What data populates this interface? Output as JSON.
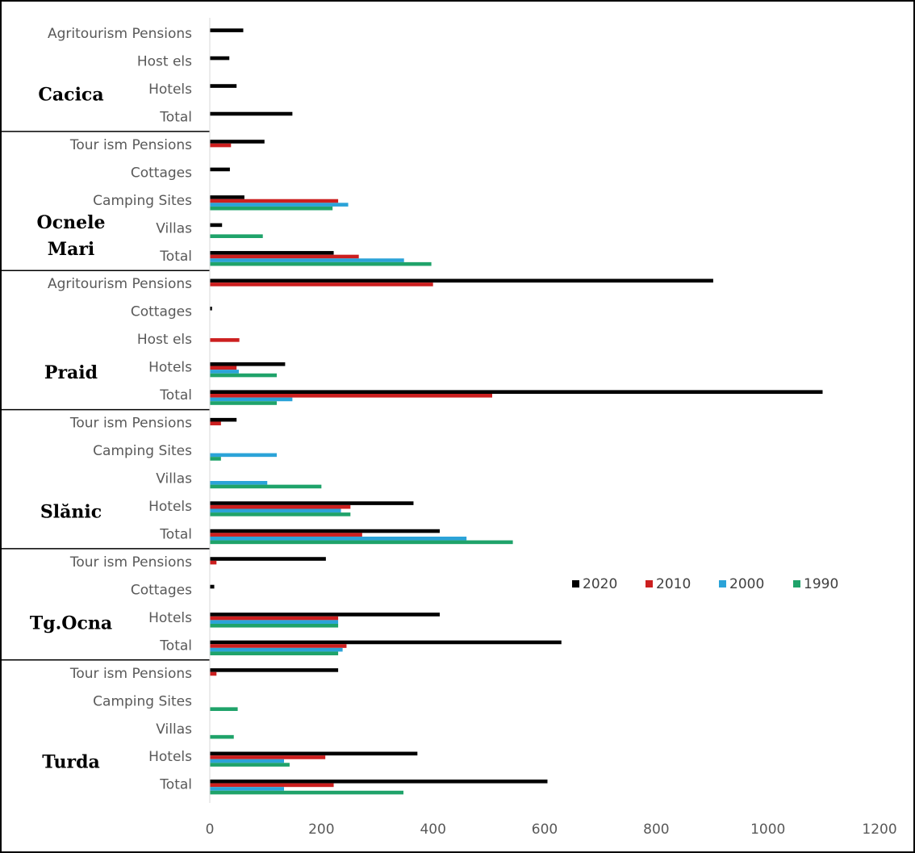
{
  "chart_data": {
    "type": "bar",
    "orientation": "horizontal",
    "xlim": [
      0,
      1200
    ],
    "x_ticks": [
      "0",
      "200",
      "400",
      "600",
      "800",
      "1000",
      "1200"
    ],
    "grid": false,
    "legend_position": "right",
    "series": [
      {
        "name": "2020",
        "color": "#000000"
      },
      {
        "name": "2010",
        "color": "#cc1f1f"
      },
      {
        "name": "2000",
        "color": "#2ba3d8"
      },
      {
        "name": "1990",
        "color": "#1fa36a"
      }
    ],
    "groups": [
      {
        "name": "Cacica",
        "label_lines": [
          "Cacica"
        ],
        "categories": [
          {
            "label": "Agritourism Pensions",
            "values": [
              60,
              0,
              0,
              0
            ]
          },
          {
            "label": "Host els",
            "values": [
              35,
              0,
              0,
              0
            ]
          },
          {
            "label": "Hotels",
            "values": [
              48,
              0,
              0,
              0
            ]
          },
          {
            "label": "Total",
            "values": [
              148,
              0,
              0,
              0
            ]
          }
        ]
      },
      {
        "name": "Ocnele Mari",
        "label_lines": [
          "Ocnele",
          "Mari"
        ],
        "categories": [
          {
            "label": "Tour ism Pensions",
            "values": [
              98,
              38,
              0,
              0
            ]
          },
          {
            "label": "Cottages",
            "values": [
              36,
              0,
              0,
              0
            ]
          },
          {
            "label": "Camping Sites",
            "values": [
              62,
              230,
              248,
              220
            ]
          },
          {
            "label": "Villas",
            "values": [
              22,
              0,
              0,
              95
            ]
          },
          {
            "label": "Total",
            "values": [
              222,
              267,
              348,
              397
            ]
          }
        ]
      },
      {
        "name": "Praid",
        "label_lines": [
          "Praid"
        ],
        "categories": [
          {
            "label": "Agritourism Pensions",
            "values": [
              902,
              400,
              0,
              0
            ]
          },
          {
            "label": "Cottages",
            "values": [
              4,
              0,
              0,
              0
            ]
          },
          {
            "label": "Host els",
            "values": [
              0,
              53,
              0,
              0
            ]
          },
          {
            "label": "Hotels",
            "values": [
              135,
              48,
              52,
              120
            ]
          },
          {
            "label": "Total",
            "values": [
              1098,
              506,
              148,
              120
            ]
          }
        ]
      },
      {
        "name": "Slănic",
        "label_lines": [
          "Slănic"
        ],
        "categories": [
          {
            "label": "Tour ism Pensions",
            "values": [
              48,
              20,
              0,
              0
            ]
          },
          {
            "label": "Camping Sites",
            "values": [
              0,
              0,
              120,
              20
            ]
          },
          {
            "label": "Villas",
            "values": [
              0,
              0,
              103,
              200
            ]
          },
          {
            "label": "Hotels",
            "values": [
              365,
              252,
              235,
              252
            ]
          },
          {
            "label": "Total",
            "values": [
              412,
              273,
              460,
              543
            ]
          }
        ]
      },
      {
        "name": "Tg.Ocna",
        "label_lines": [
          "Tg.Ocna"
        ],
        "categories": [
          {
            "label": "Tour ism Pensions",
            "values": [
              208,
              12,
              0,
              0
            ]
          },
          {
            "label": "Cottages",
            "values": [
              8,
              0,
              0,
              0
            ]
          },
          {
            "label": "Hotels",
            "values": [
              412,
              230,
              230,
              230
            ]
          },
          {
            "label": "Total",
            "values": [
              630,
              245,
              238,
              230
            ]
          }
        ]
      },
      {
        "name": "Turda",
        "label_lines": [
          "Turda"
        ],
        "categories": [
          {
            "label": "Tour ism Pensions",
            "values": [
              230,
              12,
              0,
              0
            ]
          },
          {
            "label": "Camping Sites",
            "values": [
              0,
              0,
              0,
              50
            ]
          },
          {
            "label": "Villas",
            "values": [
              0,
              0,
              0,
              43
            ]
          },
          {
            "label": "Hotels",
            "values": [
              372,
              207,
              133,
              143
            ]
          },
          {
            "label": "Total",
            "values": [
              605,
              222,
              133,
              347
            ]
          }
        ]
      }
    ]
  }
}
